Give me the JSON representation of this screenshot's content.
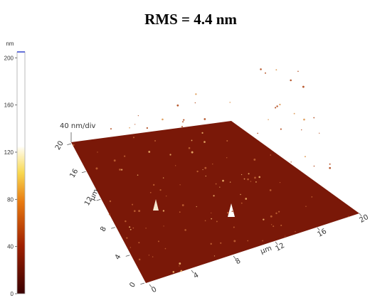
{
  "title": "RMS = 4.4 nm",
  "colorbar": {
    "unit": "nm",
    "lim": [
      0,
      205
    ],
    "ticks": [
      0,
      40,
      80,
      120,
      160,
      200
    ]
  },
  "surface": {
    "z_scale": "40 nm/div",
    "y_axis": {
      "label": "µm",
      "ticks": [
        0,
        4,
        8,
        12,
        16,
        20
      ]
    },
    "x_axis": {
      "label": "µm",
      "ticks": [
        0,
        4,
        8,
        12,
        16,
        20
      ]
    }
  }
}
